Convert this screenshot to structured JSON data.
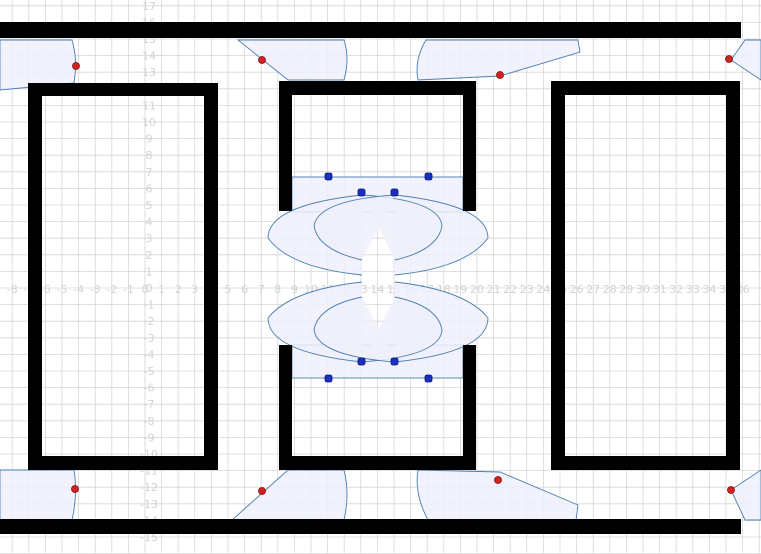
{
  "plan": {
    "x_axis_labels": [
      "-8",
      "-7",
      "-6",
      "-5",
      "-4",
      "-3",
      "-2",
      "-1",
      "0",
      "1",
      "2",
      "3",
      "4",
      "5",
      "6",
      "7",
      "8",
      "9",
      "10",
      "11",
      "12",
      "13",
      "14",
      "15",
      "16",
      "17",
      "18",
      "19",
      "20",
      "21",
      "22",
      "23",
      "24",
      "25",
      "26",
      "27",
      "28",
      "29",
      "30",
      "31",
      "32",
      "33",
      "34",
      "35",
      "36"
    ],
    "y_axis_labels": [
      "17",
      "16",
      "15",
      "14",
      "13",
      "12",
      "11",
      "10",
      "9",
      "8",
      "7",
      "6",
      "5",
      "4",
      "3",
      "2",
      "1",
      "0",
      "-1",
      "-2",
      "-3",
      "-4",
      "-5",
      "-6",
      "-7",
      "-8",
      "-9",
      "-10",
      "-11",
      "-12",
      "-13",
      "-14",
      "-15"
    ],
    "colors": {
      "wall": "#000000",
      "grid": "#d6d6d6",
      "axis_text": "#d2d2d2",
      "swing_fill": "#eef0fb",
      "swing_stroke": "#4a7fb0",
      "hinge_red": "#d42020",
      "hinge_blue": "#1a2fc4"
    },
    "icons": {
      "door_hinge_red": "red-circle",
      "door_hinge_blue": "blue-square"
    }
  }
}
